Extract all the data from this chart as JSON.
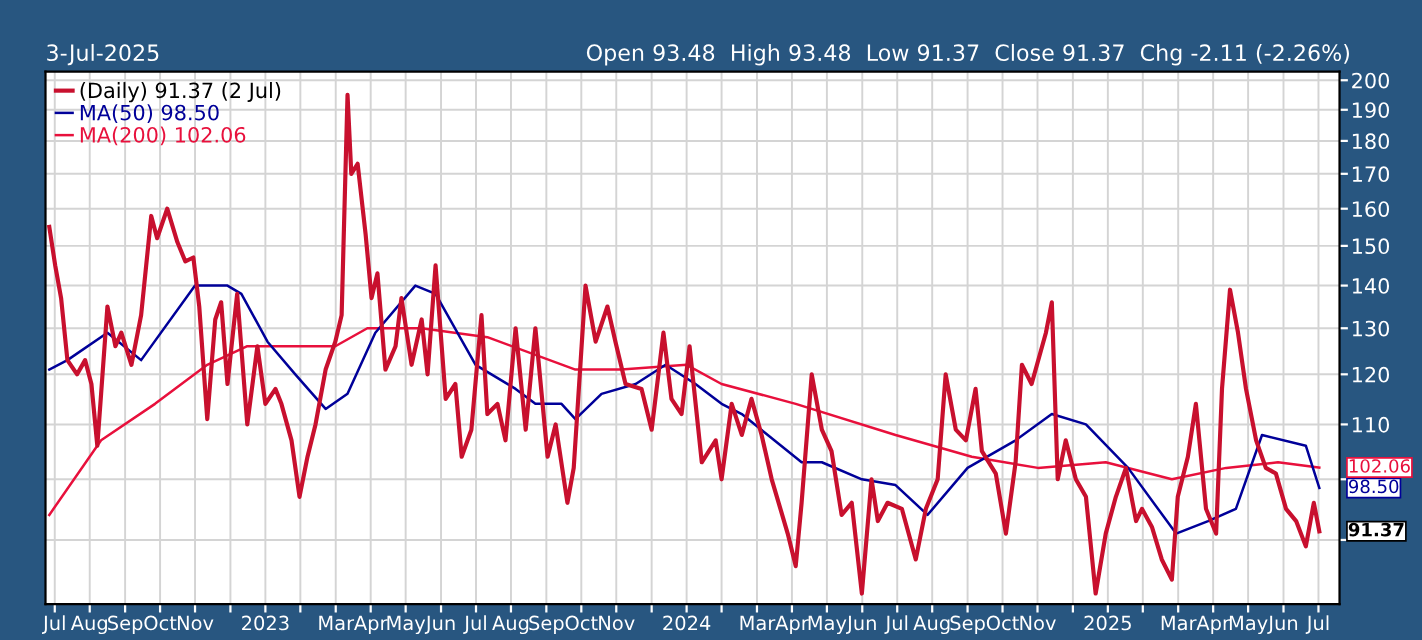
{
  "chart_data": {
    "type": "line",
    "subtitle": "Open 93.48  High 93.48  Low 91.37  Close 91.37  Chg -2.11 (-2.26%)",
    "annotations": [
      "3-Jul-2025"
    ],
    "log": "y",
    "grid": true,
    "legend": "top left",
    "marker": "none",
    "line_style": "solid",
    "xlim": [
      2022.478,
      2025.55
    ],
    "ylim": [
      80.5,
      203
    ],
    "yticks": [
      {
        "value": 90,
        "label": null
      },
      {
        "value": 100,
        "label": null
      },
      110,
      120,
      130,
      140,
      150,
      160,
      170,
      180,
      190,
      200
    ],
    "xticks": [
      {
        "value": 2022.5,
        "label": "Jul"
      },
      {
        "value": 2022.583,
        "label": "Aug"
      },
      {
        "value": 2022.667,
        "label": "Sep"
      },
      {
        "value": 2022.75,
        "label": "Oct"
      },
      {
        "value": 2022.833,
        "label": "Nov"
      },
      {
        "value": 2022.917,
        "label": null
      },
      {
        "value": 2023.0,
        "label": "2023"
      },
      {
        "value": 2023.083,
        "label": null
      },
      {
        "value": 2023.167,
        "label": "Mar"
      },
      {
        "value": 2023.25,
        "label": "Apr"
      },
      {
        "value": 2023.333,
        "label": "May"
      },
      {
        "value": 2023.417,
        "label": "Jun"
      },
      {
        "value": 2023.5,
        "label": "Jul"
      },
      {
        "value": 2023.583,
        "label": "Aug"
      },
      {
        "value": 2023.667,
        "label": "Sep"
      },
      {
        "value": 2023.75,
        "label": "Oct"
      },
      {
        "value": 2023.833,
        "label": "Nov"
      },
      {
        "value": 2023.917,
        "label": null
      },
      {
        "value": 2024.0,
        "label": "2024"
      },
      {
        "value": 2024.083,
        "label": null
      },
      {
        "value": 2024.167,
        "label": "Mar"
      },
      {
        "value": 2024.25,
        "label": "Apr"
      },
      {
        "value": 2024.333,
        "label": "May"
      },
      {
        "value": 2024.417,
        "label": "Jun"
      },
      {
        "value": 2024.5,
        "label": "Jul"
      },
      {
        "value": 2024.583,
        "label": "Aug"
      },
      {
        "value": 2024.667,
        "label": "Sep"
      },
      {
        "value": 2024.75,
        "label": "Oct"
      },
      {
        "value": 2024.833,
        "label": "Nov"
      },
      {
        "value": 2024.917,
        "label": null
      },
      {
        "value": 2025.0,
        "label": "2025"
      },
      {
        "value": 2025.083,
        "label": null
      },
      {
        "value": 2025.167,
        "label": "Mar"
      },
      {
        "value": 2025.25,
        "label": "Apr"
      },
      {
        "value": 2025.333,
        "label": "May"
      },
      {
        "value": 2025.417,
        "label": "Jun"
      },
      {
        "value": 2025.5,
        "label": "Jul"
      }
    ],
    "series": [
      {
        "name": "(Daily) 91.37 (2 Jul)",
        "color": "#c8102e",
        "value_labels": [
          null,
          null,
          null,
          null,
          null,
          null,
          null,
          null,
          null,
          null,
          null,
          null,
          null,
          null,
          null,
          null,
          null,
          null,
          null,
          null,
          null,
          null,
          null,
          null,
          null,
          null,
          null,
          null,
          null,
          null,
          null,
          null,
          null,
          null,
          null,
          null,
          null,
          null,
          null,
          null,
          null,
          null,
          null,
          null,
          null,
          null,
          null,
          null,
          null,
          null,
          null,
          null,
          null,
          null,
          null,
          null,
          null,
          null,
          null,
          null,
          null,
          null,
          null,
          null,
          null,
          null,
          null,
          null,
          null,
          null,
          null,
          null,
          null,
          null,
          null,
          null,
          null,
          null,
          null,
          null,
          null,
          null,
          null,
          null,
          null,
          null,
          null,
          null,
          null,
          null,
          null,
          null,
          null,
          null,
          null,
          null,
          null,
          null,
          null,
          null,
          null,
          null,
          null,
          null,
          null,
          null,
          null,
          null,
          null,
          null,
          null,
          null,
          null,
          null,
          null,
          null,
          null,
          null,
          null,
          null,
          null,
          null,
          null,
          null,
          null,
          null,
          null,
          null,
          null,
          null,
          null,
          null,
          null,
          null,
          null,
          null,
          null,
          null,
          null,
          null,
          null,
          null,
          "91.37"
        ],
        "x": [
          2022.487,
          2022.501,
          2022.515,
          2022.53,
          2022.553,
          2022.572,
          2022.587,
          2022.601,
          2022.61,
          2022.625,
          2022.644,
          2022.658,
          2022.682,
          2022.705,
          2022.729,
          2022.743,
          2022.767,
          2022.791,
          2022.81,
          2022.829,
          2022.843,
          2022.862,
          2022.881,
          2022.895,
          2022.91,
          2022.933,
          2022.957,
          2022.981,
          2023.0,
          2023.024,
          2023.038,
          2023.062,
          2023.081,
          2023.1,
          2023.119,
          2023.143,
          2023.166,
          2023.181,
          2023.195,
          2023.204,
          2023.219,
          2023.238,
          2023.252,
          2023.266,
          2023.285,
          2023.309,
          2023.323,
          2023.347,
          2023.371,
          2023.385,
          2023.404,
          2023.428,
          2023.451,
          2023.466,
          2023.489,
          2023.513,
          2023.527,
          2023.551,
          2023.57,
          2023.594,
          2023.618,
          2023.641,
          2023.67,
          2023.689,
          2023.717,
          2023.732,
          2023.76,
          2023.784,
          2023.812,
          2023.831,
          2023.855,
          2023.893,
          2023.917,
          2023.945,
          2023.964,
          2023.988,
          2024.007,
          2024.036,
          2024.069,
          2024.083,
          2024.107,
          2024.131,
          2024.154,
          2024.178,
          2024.202,
          2024.24,
          2024.259,
          2024.273,
          2024.297,
          2024.321,
          2024.344,
          2024.368,
          2024.392,
          2024.416,
          2024.439,
          2024.454,
          2024.477,
          2024.511,
          2024.544,
          2024.568,
          2024.596,
          2024.615,
          2024.639,
          2024.663,
          2024.686,
          2024.701,
          2024.734,
          2024.758,
          2024.781,
          2024.796,
          2024.819,
          2024.853,
          2024.867,
          2024.881,
          2024.9,
          2024.924,
          2024.948,
          2024.971,
          2024.995,
          2025.019,
          2025.043,
          2025.067,
          2025.081,
          2025.105,
          2025.128,
          2025.152,
          2025.166,
          2025.19,
          2025.209,
          2025.233,
          2025.257,
          2025.271,
          2025.29,
          2025.309,
          2025.328,
          2025.352,
          2025.375,
          2025.399,
          2025.423,
          2025.447,
          2025.47,
          2025.489,
          2025.502
        ],
        "values": [
          155,
          145,
          137,
          123,
          120,
          123,
          118,
          106,
          116,
          135,
          126,
          129,
          122,
          133,
          158,
          152,
          160,
          151,
          146,
          147,
          135,
          111,
          132,
          136,
          118,
          138,
          110,
          126,
          114,
          117,
          114,
          107,
          97,
          104,
          110,
          121,
          127,
          133,
          195,
          170,
          173,
          153,
          137,
          143,
          121,
          126,
          137,
          122,
          132,
          120,
          145,
          115,
          118,
          104,
          109,
          133,
          112,
          114,
          107,
          130,
          109,
          130,
          104,
          110,
          96,
          102,
          140,
          127,
          135,
          127,
          118,
          117,
          109,
          129,
          115,
          112,
          126,
          103,
          107,
          100,
          114,
          108,
          115,
          108,
          100,
          91,
          86,
          96,
          120,
          109,
          105,
          94,
          96,
          82,
          100,
          93,
          96,
          95,
          87,
          95,
          100,
          120,
          109,
          107,
          117,
          105,
          101,
          91,
          103,
          122,
          118,
          129,
          136,
          100,
          107,
          100,
          97,
          82,
          91,
          97,
          102,
          93,
          95,
          92,
          87,
          84,
          97,
          104,
          114,
          95,
          91,
          117,
          139,
          129,
          117,
          107,
          102,
          101,
          95,
          93,
          89,
          96,
          91.37
        ]
      },
      {
        "name": "MA(50) 98.50",
        "color": "#000099",
        "value_labels": [
          null,
          null,
          null,
          null,
          null,
          null,
          null,
          null,
          null,
          null,
          null,
          null,
          null,
          null,
          null,
          null,
          null,
          null,
          null,
          null,
          null,
          null,
          null,
          null,
          null,
          null,
          null,
          null,
          null,
          null,
          null,
          null,
          null,
          null,
          null,
          null,
          null,
          null,
          null,
          null,
          "98.50"
        ],
        "x": [
          2022.487,
          2022.53,
          2022.625,
          2022.705,
          2022.833,
          2022.91,
          2022.943,
          2023.005,
          2023.071,
          2023.143,
          2023.195,
          2023.261,
          2023.356,
          2023.404,
          2023.499,
          2023.594,
          2023.641,
          2023.703,
          2023.736,
          2023.798,
          2023.879,
          2023.95,
          2024.021,
          2024.083,
          2024.131,
          2024.273,
          2024.321,
          2024.416,
          2024.496,
          2024.572,
          2024.667,
          2024.781,
          2024.867,
          2024.948,
          2025.048,
          2025.162,
          2025.238,
          2025.304,
          2025.366,
          2025.47,
          2025.502
        ],
        "values": [
          121,
          123,
          129,
          123,
          140,
          140,
          138,
          127,
          120,
          113,
          116,
          129,
          140,
          138,
          122,
          117,
          114,
          114,
          111,
          116,
          118,
          122,
          118,
          114,
          112,
          103,
          103,
          100,
          99,
          94,
          102,
          107,
          112,
          110,
          102,
          91,
          93,
          95,
          108,
          106,
          98.5
        ]
      },
      {
        "name": "MA(200) 102.06",
        "color": "#e8103c",
        "value_labels": [
          null,
          null,
          null,
          null,
          null,
          null,
          null,
          null,
          null,
          null,
          null,
          null,
          null,
          null,
          null,
          null,
          null,
          null,
          null,
          null,
          null,
          null,
          "102.06"
        ],
        "x": [
          2022.487,
          2022.61,
          2022.738,
          2022.862,
          2022.957,
          2023.086,
          2023.166,
          2023.242,
          2023.371,
          2023.527,
          2023.736,
          2023.845,
          2024.0,
          2024.083,
          2024.259,
          2024.496,
          2024.677,
          2024.834,
          2024.995,
          2025.152,
          2025.281,
          2025.404,
          2025.502
        ],
        "values": [
          94,
          107,
          114,
          122,
          126,
          126,
          126,
          130,
          130,
          128,
          121,
          121,
          122,
          118,
          114,
          108,
          104,
          102,
          103,
          100,
          102,
          103,
          102.06
        ]
      }
    ]
  }
}
